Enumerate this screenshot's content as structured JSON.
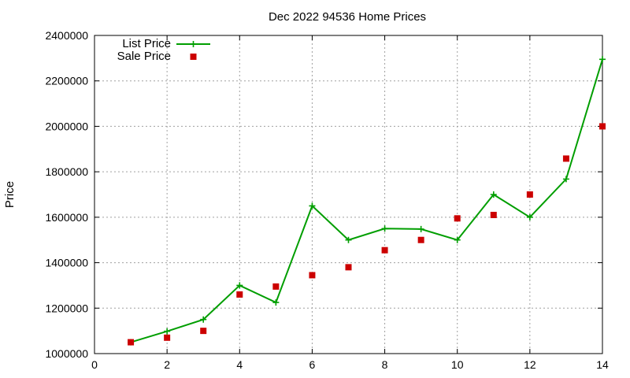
{
  "chart_data": {
    "type": "line",
    "title": "Dec 2022 94536 Home Prices",
    "xlabel": "",
    "ylabel": "Price",
    "xlim": [
      0,
      14
    ],
    "ylim": [
      1000000,
      2400000
    ],
    "x_ticks": [
      0,
      2,
      4,
      6,
      8,
      10,
      12,
      14
    ],
    "y_ticks": [
      1000000,
      1200000,
      1400000,
      1600000,
      1800000,
      2000000,
      2200000,
      2400000
    ],
    "grid": true,
    "legend_position": "top-left",
    "series": [
      {
        "name": "List Price",
        "style": "line-with-plus-markers",
        "color": "#009e00",
        "x": [
          1,
          2,
          3,
          4,
          5,
          6,
          7,
          8,
          9,
          10,
          11,
          12,
          13,
          14
        ],
        "values": [
          1050000,
          1098000,
          1150000,
          1300000,
          1225000,
          1650000,
          1500000,
          1550000,
          1548000,
          1500000,
          1700000,
          1600000,
          1768000,
          2295000
        ]
      },
      {
        "name": "Sale Price",
        "style": "square-points",
        "color": "#cc0000",
        "x": [
          1,
          2,
          3,
          4,
          5,
          6,
          7,
          8,
          9,
          10,
          11,
          12,
          13,
          14
        ],
        "values": [
          1050000,
          1070000,
          1100000,
          1260000,
          1295000,
          1345000,
          1380000,
          1455000,
          1500000,
          1595000,
          1610000,
          1700000,
          1858000,
          2000000
        ]
      }
    ]
  }
}
